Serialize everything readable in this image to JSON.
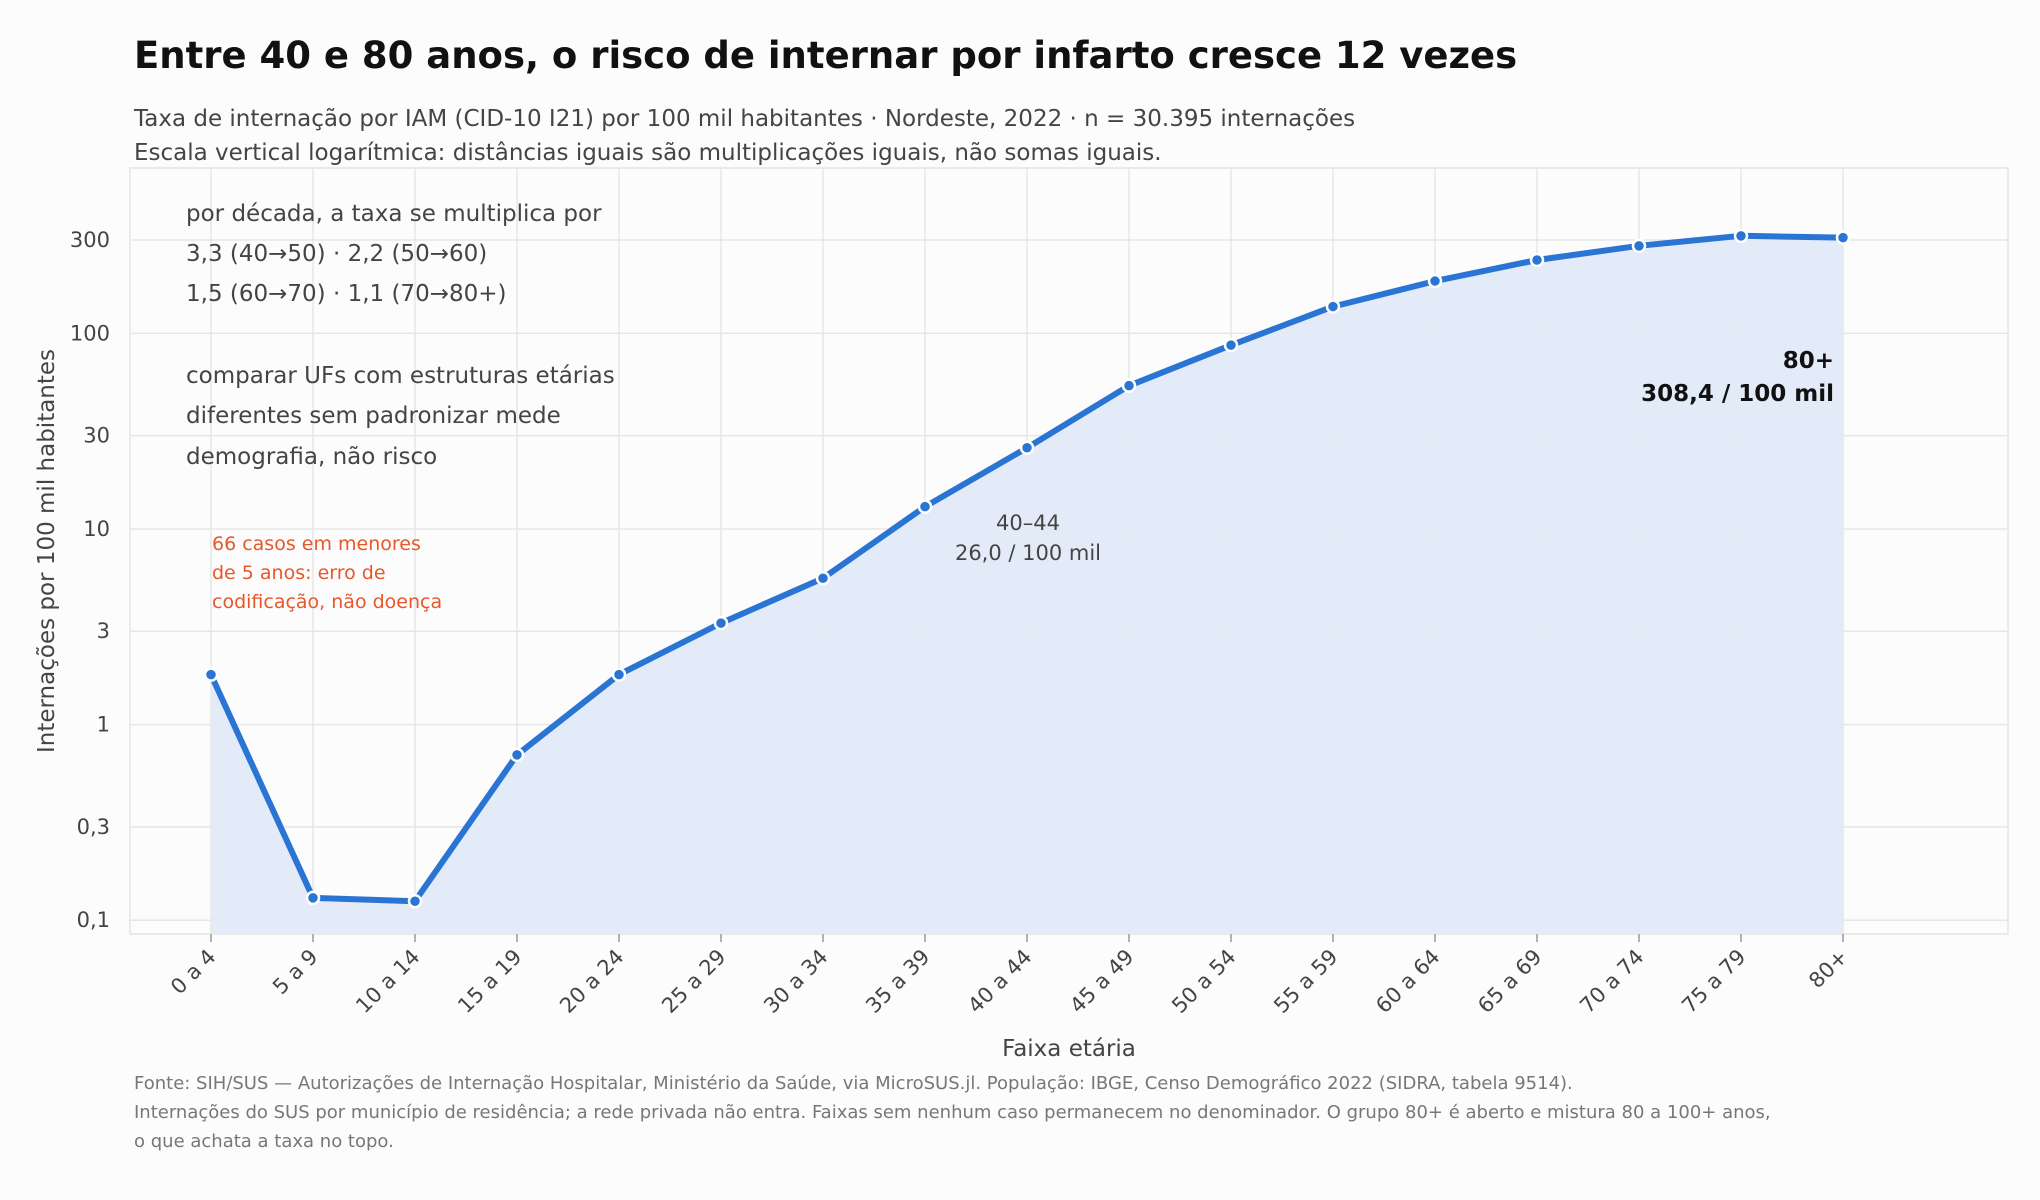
{
  "header": {
    "title": "Entre 40 e 80 anos, o risco de internar por infarto cresce 12 vezes",
    "subtitle_1": "Taxa de internação por IAM (CID-10 I21) por 100 mil habitantes · Nordeste, 2022 · n = 30.395 internações",
    "subtitle_2": "Escala vertical logarítmica: distâncias iguais são multiplicações iguais, não somas iguais."
  },
  "chart_data": {
    "type": "area",
    "xlabel": "Faixa etária",
    "ylabel": "Internações por 100 mil habitantes",
    "yscale": "log",
    "ylim": [
      0.085,
      700
    ],
    "grid": true,
    "line_color": "#2a75d3",
    "fill_color": "#e0eaf7",
    "categories": [
      "0 a 4",
      "5 a 9",
      "10 a 14",
      "15 a 19",
      "20 a 24",
      "25 a 29",
      "30 a 34",
      "35 a 39",
      "40 a 44",
      "45 a 49",
      "50 a 54",
      "55 a 59",
      "60 a 64",
      "65 a 69",
      "70 a 74",
      "75 a 79",
      "80+"
    ],
    "values": [
      1.8,
      0.13,
      0.125,
      0.7,
      1.8,
      3.3,
      5.6,
      13.0,
      26.0,
      54.0,
      87.0,
      137.0,
      185.0,
      237.0,
      280.0,
      315.0,
      308.4
    ],
    "yticks": [
      0.1,
      0.3,
      1,
      3,
      10,
      30,
      100,
      300
    ],
    "ytick_labels": [
      "0,1",
      "0,3",
      "1",
      "3",
      "10",
      "30",
      "100",
      "300"
    ],
    "annotations": {
      "decade_note": [
        "por década, a taxa se multiplica por",
        "3,3 (40→50)  ·  2,2 (50→60)",
        "1,5 (60→70)  ·  1,1 (70→80+)"
      ],
      "compare_note": [
        "comparar UFs com estruturas etárias",
        "diferentes sem padronizar mede",
        "demografia, não risco"
      ],
      "warning_note": [
        "66 casos em menores",
        "de 5 anos: erro de",
        "codificação, não doença"
      ],
      "point_40_44": [
        "40–44",
        "26,0 / 100 mil"
      ],
      "point_80": [
        "80+",
        "308,4 / 100 mil"
      ],
      "warning_color": "#e8572a"
    }
  },
  "footer": {
    "line_1": "Fonte: SIH/SUS — Autorizações de Internação Hospitalar, Ministério da Saúde, via MicroSUS.jl. População: IBGE, Censo Demográfico 2022 (SIDRA, tabela 9514).",
    "line_2": "Internações do SUS por município de residência; a rede privada não entra. Faixas sem nenhum caso permanecem no denominador. O grupo 80+ é aberto e mistura 80 a 100+ anos,",
    "line_3": "o que achata a taxa no topo."
  }
}
